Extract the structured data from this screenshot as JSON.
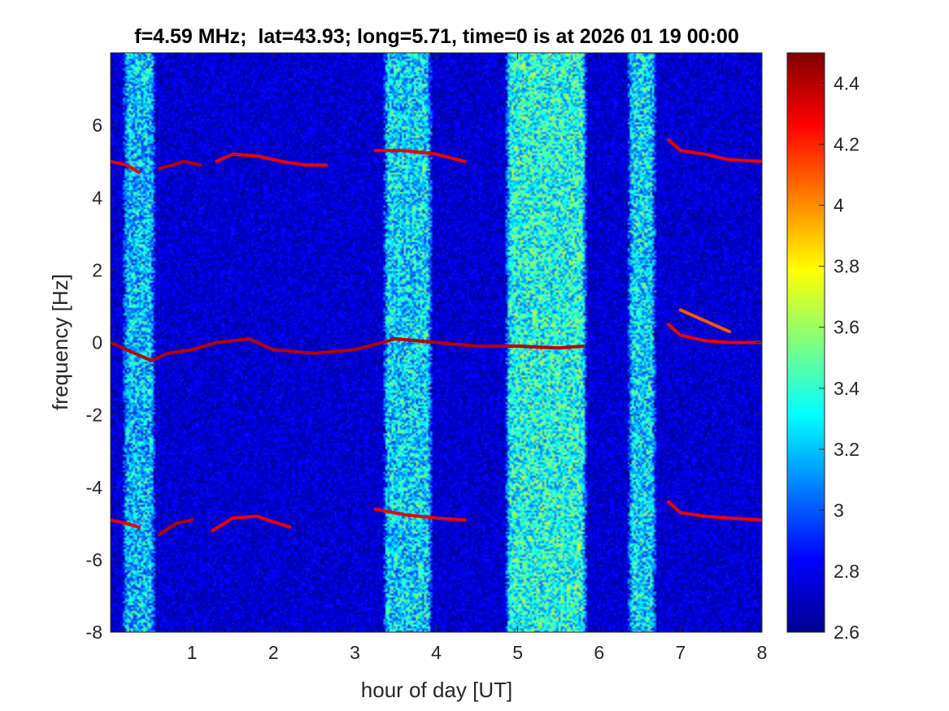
{
  "chart_data": {
    "type": "heatmap",
    "title": "f=4.59 MHz;  lat=43.93; long=5.71, time=0 is at 2026 01 19 00:00",
    "xlabel": "hour of day [UT]",
    "ylabel": "frequency [Hz]",
    "xlim": [
      0,
      8
    ],
    "ylim": [
      -8,
      8
    ],
    "xticks": [
      1,
      2,
      3,
      4,
      5,
      6,
      7,
      8
    ],
    "xtick_labels": [
      "1",
      "2",
      "3",
      "4",
      "5",
      "6",
      "7",
      "8"
    ],
    "yticks": [
      -8,
      -6,
      -4,
      -2,
      0,
      2,
      4,
      6
    ],
    "ytick_labels": [
      "-8",
      "-6",
      "-4",
      "-2",
      "0",
      "2",
      "4",
      "6"
    ],
    "colormap": "jet",
    "clim": [
      2.6,
      4.5
    ],
    "colorbar_ticks": [
      2.6,
      2.8,
      3,
      3.2,
      3.4,
      3.6,
      3.8,
      4,
      4.2,
      4.4
    ],
    "colorbar_tick_labels": [
      "2.6",
      "2.8",
      "3",
      "3.2",
      "3.4",
      "3.6",
      "3.8",
      "4",
      "4.2",
      "4.4"
    ],
    "background_level": 2.75,
    "broadband_noise_bands": [
      {
        "x": [
          0.2,
          0.5
        ],
        "level": 3.2
      },
      {
        "x": [
          3.4,
          3.9
        ],
        "level": 3.25
      },
      {
        "x": [
          4.9,
          5.8
        ],
        "level": 3.35
      },
      {
        "x": [
          6.4,
          6.65
        ],
        "level": 3.25
      }
    ],
    "doppler_traces": [
      {
        "x": [
          0.0,
          0.3,
          0.4,
          0.5,
          0.7,
          1.0,
          1.3,
          1.7,
          2.0,
          2.5,
          3.0,
          3.5,
          4.0,
          4.5,
          5.0,
          5.5,
          5.8
        ],
        "y": [
          0.0,
          -0.3,
          -0.4,
          -0.5,
          -0.3,
          -0.2,
          0.0,
          0.1,
          -0.2,
          -0.3,
          -0.2,
          0.1,
          0.0,
          -0.1,
          -0.1,
          -0.15,
          -0.1
        ],
        "level": 4.4
      },
      {
        "x": [
          0.0,
          0.2,
          0.35
        ],
        "y": [
          5.0,
          4.9,
          4.7
        ],
        "level": 4.3
      },
      {
        "x": [
          0.6,
          0.9,
          1.1
        ],
        "y": [
          4.8,
          5.0,
          4.9
        ],
        "level": 4.4
      },
      {
        "x": [
          1.3,
          1.5,
          1.8,
          2.1,
          2.4,
          2.65
        ],
        "y": [
          5.0,
          5.2,
          5.15,
          5.0,
          4.9,
          4.9
        ],
        "level": 4.3
      },
      {
        "x": [
          3.25,
          3.6,
          4.0,
          4.35
        ],
        "y": [
          5.3,
          5.3,
          5.2,
          5.0
        ],
        "level": 4.3
      },
      {
        "x": [
          0.0,
          0.2,
          0.35
        ],
        "y": [
          -4.9,
          -5.0,
          -5.1
        ],
        "level": 4.3
      },
      {
        "x": [
          0.6,
          0.8,
          1.0
        ],
        "y": [
          -5.3,
          -5.0,
          -4.9
        ],
        "level": 4.4
      },
      {
        "x": [
          1.25,
          1.5,
          1.8,
          2.2
        ],
        "y": [
          -5.2,
          -4.85,
          -4.8,
          -5.1
        ],
        "level": 4.3
      },
      {
        "x": [
          3.25,
          3.6,
          4.0,
          4.35
        ],
        "y": [
          -4.6,
          -4.75,
          -4.85,
          -4.9
        ],
        "level": 4.3
      },
      {
        "x": [
          6.85,
          7.0,
          7.3,
          7.6,
          8.0
        ],
        "y": [
          5.6,
          5.3,
          5.2,
          5.05,
          5.0
        ],
        "level": 4.3
      },
      {
        "x": [
          6.85,
          7.0,
          7.3,
          7.6,
          8.0
        ],
        "y": [
          0.5,
          0.2,
          0.05,
          0.0,
          0.0
        ],
        "level": 4.3
      },
      {
        "x": [
          7.0,
          7.3,
          7.6
        ],
        "y": [
          0.9,
          0.6,
          0.3
        ],
        "level": 4.1
      },
      {
        "x": [
          6.85,
          7.0,
          7.3,
          7.6,
          8.0
        ],
        "y": [
          -4.4,
          -4.7,
          -4.8,
          -4.85,
          -4.9
        ],
        "level": 4.3
      }
    ]
  }
}
